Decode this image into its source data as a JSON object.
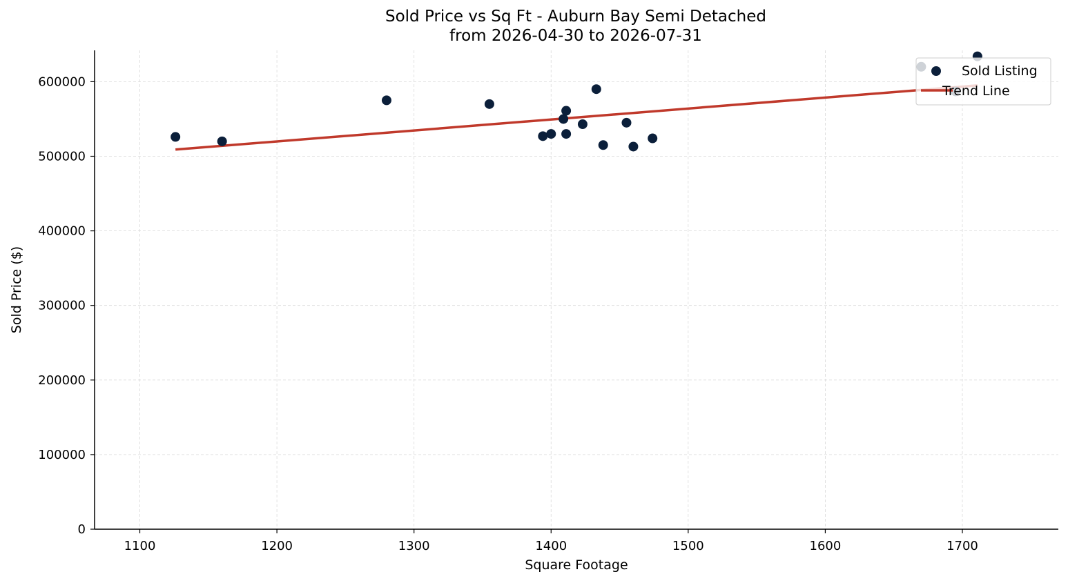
{
  "chart_data": {
    "type": "scatter",
    "title": "Sold Price vs Sq Ft - Auburn Bay Semi Detached",
    "subtitle": "from 2026-04-30 to 2026-07-31",
    "xlabel": "Square Footage",
    "ylabel": "Sold Price ($)",
    "xlim": [
      1067,
      1770
    ],
    "ylim": [
      0,
      642000
    ],
    "x_ticks": [
      1100,
      1200,
      1300,
      1400,
      1500,
      1600,
      1700
    ],
    "y_ticks": [
      0,
      100000,
      200000,
      300000,
      400000,
      500000,
      600000
    ],
    "grid": true,
    "legend_position": "upper right",
    "series": [
      {
        "name": "Sold Listing",
        "type": "scatter",
        "color": "#0b1f3a",
        "x": [
          1126,
          1160,
          1280,
          1355,
          1394,
          1400,
          1409,
          1411,
          1411,
          1423,
          1433,
          1438,
          1455,
          1460,
          1474,
          1670,
          1695,
          1711
        ],
        "y": [
          526000,
          520000,
          575000,
          570000,
          527000,
          530000,
          550000,
          530000,
          561000,
          543000,
          590000,
          515000,
          545000,
          513000,
          524000,
          620000,
          587000,
          634000
        ]
      },
      {
        "name": "Trend Line",
        "type": "line",
        "color": "#c0392b",
        "x": [
          1126,
          1711
        ],
        "y": [
          509000,
          595000
        ]
      }
    ]
  }
}
